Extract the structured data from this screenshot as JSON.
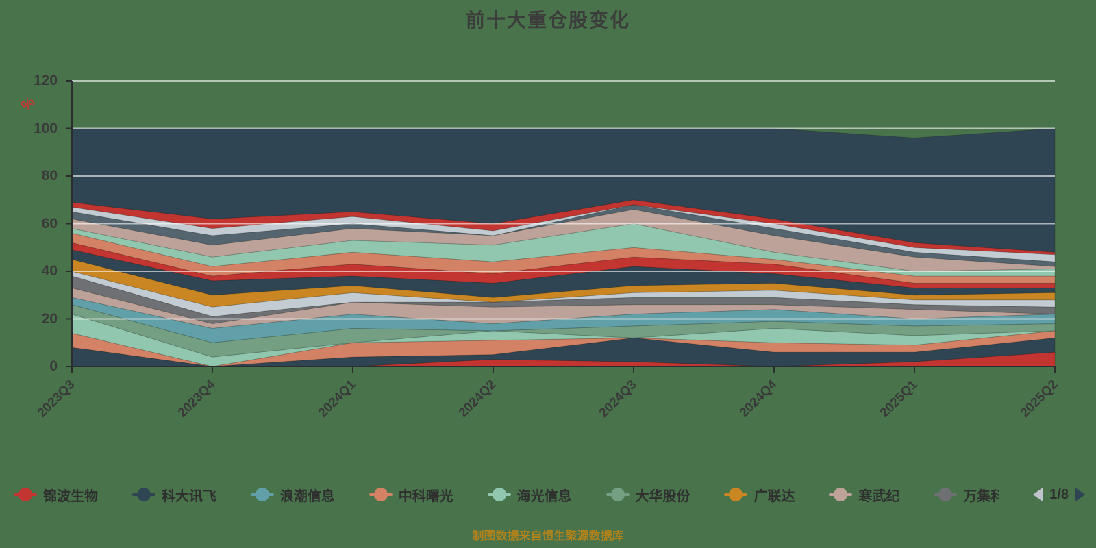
{
  "title": "前十大重仓股变化",
  "caption": "制图数据来自恒生聚源数据库",
  "colors": {
    "background": "#48734b",
    "title": "#3c3c3c",
    "axis_line": "#2b2d30",
    "axis_label": "#3a3a3a",
    "grid_line": "rgba(255,255,255,0.6)",
    "unit": "#c23531",
    "legend_text": "#2f2f2f",
    "caption": "#b0821c",
    "pager_prev": "#c0c4cc",
    "pager_next": "#2f4554"
  },
  "legend": {
    "items": [
      {
        "label": "锦波生物",
        "color": "#c23531"
      },
      {
        "label": "科大讯飞",
        "color": "#2f4554"
      },
      {
        "label": "浪潮信息",
        "color": "#61a0a8"
      },
      {
        "label": "中科曙光",
        "color": "#d48265"
      },
      {
        "label": "海光信息",
        "color": "#91c7ae"
      },
      {
        "label": "大华股份",
        "color": "#749f83"
      },
      {
        "label": "广联达",
        "color": "#ca8622"
      },
      {
        "label": "寒武纪",
        "color": "#bda29a"
      },
      {
        "label": "万集科",
        "color": "#6e7074",
        "truncated": true,
        "clip_width": 52
      }
    ],
    "pager": {
      "text": "1/8"
    }
  },
  "chart_data": {
    "type": "area",
    "stacked": true,
    "title": "前十大重仓股变化",
    "legend_position": "bottom",
    "categories": [
      "2023Q3",
      "2023Q4",
      "2024Q1",
      "2024Q2",
      "2024Q3",
      "2024Q4",
      "2025Q1",
      "2025Q2"
    ],
    "y_axis": {
      "unit": "%",
      "min": 0,
      "max": 120,
      "tick_step": 20,
      "ticks": [
        0,
        20,
        40,
        60,
        80,
        100,
        120
      ],
      "grid": true
    },
    "totals_by_quarter": [
      100,
      100,
      100,
      100,
      100,
      100,
      96,
      100
    ],
    "series": [
      {
        "label": "",
        "color": "#c23531",
        "values": [
          0,
          0,
          0,
          3,
          2,
          0,
          2,
          6
        ]
      },
      {
        "label": "",
        "color": "#2f4554",
        "values": [
          8,
          0,
          4,
          2,
          10,
          6,
          4,
          6
        ]
      },
      {
        "label": "",
        "color": "#d48265",
        "values": [
          6,
          0,
          6,
          6,
          0,
          4,
          3,
          3
        ]
      },
      {
        "label": "",
        "color": "#91c7ae",
        "values": [
          8,
          4,
          0,
          4,
          0,
          6,
          4,
          0
        ]
      },
      {
        "label": "大华股份",
        "color": "#749f83",
        "values": [
          4,
          6,
          6,
          0,
          5,
          3,
          4,
          3
        ]
      },
      {
        "label": "浪潮信息",
        "color": "#61a0a8",
        "values": [
          3,
          6,
          6,
          3,
          5,
          5,
          3,
          4
        ]
      },
      {
        "label": "",
        "color": "#bda29a",
        "values": [
          4,
          2,
          5,
          7,
          4,
          2,
          4,
          0
        ]
      },
      {
        "label": "万集科",
        "color": "#6e7074",
        "values": [
          5,
          3,
          0,
          2,
          3,
          3,
          2,
          3
        ]
      },
      {
        "label": "",
        "color": "#c4ccd3",
        "values": [
          2,
          4,
          4,
          0,
          2,
          3,
          2,
          3
        ]
      },
      {
        "label": "广联达",
        "color": "#ca8622",
        "values": [
          5,
          5,
          3,
          2,
          3,
          3,
          2,
          3
        ]
      },
      {
        "label": "",
        "color": "#2f4554",
        "values": [
          4,
          6,
          4,
          6,
          8,
          4,
          3,
          2
        ]
      },
      {
        "label": "锦波生物",
        "color": "#c23531",
        "values": [
          3,
          2,
          5,
          4,
          4,
          4,
          2,
          2
        ]
      },
      {
        "label": "中科曙光",
        "color": "#d48265",
        "values": [
          4,
          4,
          5,
          5,
          4,
          2,
          3,
          3
        ]
      },
      {
        "label": "海光信息",
        "color": "#91c7ae",
        "values": [
          2,
          4,
          5,
          7,
          10,
          3,
          2,
          3
        ]
      },
      {
        "label": "寒武纪",
        "color": "#bda29a",
        "values": [
          4,
          5,
          5,
          4,
          6,
          7,
          6,
          1
        ]
      },
      {
        "label": "",
        "color": "#546570",
        "values": [
          3,
          4,
          2,
          0,
          2,
          3,
          2,
          2
        ]
      },
      {
        "label": "",
        "color": "#c4ccd3",
        "values": [
          2,
          3,
          3,
          2,
          0,
          2,
          2,
          3
        ]
      },
      {
        "label": "",
        "color": "#c23531",
        "values": [
          2,
          4,
          2,
          3,
          2,
          2,
          2,
          1
        ]
      },
      {
        "label": "科大讯飞",
        "color": "#2f4554",
        "values": [
          31,
          38,
          35,
          40,
          30,
          38,
          44,
          52
        ]
      }
    ]
  }
}
